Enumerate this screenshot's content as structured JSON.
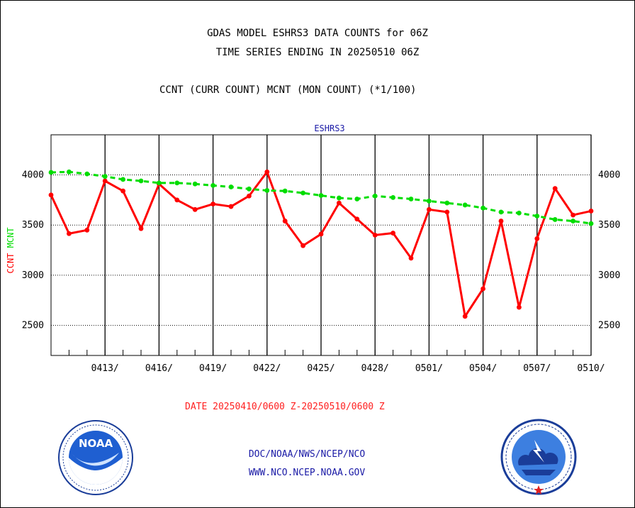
{
  "titles": {
    "line1": "GDAS MODEL ESHRS3 DATA COUNTS for 06Z",
    "line2": "TIME SERIES ENDING IN 20250510 06Z",
    "line3": "CCNT (CURR COUNT) MCNT (MON COUNT) (*1/100)"
  },
  "footer": {
    "date_range": "DATE 20250410/0600 Z-20250510/0600 Z",
    "org_path": "DOC/NOAA/NWS/NCEP/NCO",
    "website": "WWW.NCO.NCEP.NOAA.GOV"
  },
  "logos": {
    "left": {
      "icon": "noaa-logo-icon",
      "text": "NOAA"
    },
    "right": {
      "icon": "national-weather-service-logo-icon"
    }
  },
  "chart_data": {
    "type": "line",
    "title": "ESHRS3",
    "ylabel_left_parts": [
      {
        "text": "CCNT",
        "color": "#ff0000"
      },
      {
        "text": "MCNT",
        "color": "#00dd00"
      }
    ],
    "x": [
      0,
      1,
      2,
      3,
      4,
      5,
      6,
      7,
      8,
      9,
      10,
      11,
      12,
      13,
      14,
      15,
      16,
      17,
      18,
      19,
      20,
      21,
      22,
      23,
      24,
      25,
      26,
      27,
      28,
      29,
      30
    ],
    "xlim": [
      0,
      30
    ],
    "ylim": [
      2200,
      4400
    ],
    "yticks": [
      2500,
      3000,
      3500,
      4000
    ],
    "xticks": [
      {
        "x": 3,
        "label": "0413/"
      },
      {
        "x": 6,
        "label": "0416/"
      },
      {
        "x": 9,
        "label": "0419/"
      },
      {
        "x": 12,
        "label": "0422/"
      },
      {
        "x": 15,
        "label": "0425/"
      },
      {
        "x": 18,
        "label": "0428/"
      },
      {
        "x": 21,
        "label": "0501/"
      },
      {
        "x": 24,
        "label": "0504/"
      },
      {
        "x": 27,
        "label": "0507/"
      },
      {
        "x": 30,
        "label": "0510/"
      }
    ],
    "grid": true,
    "series": [
      {
        "name": "CCNT",
        "color": "#ff0000",
        "style": "solid",
        "values": [
          3800,
          3415,
          3450,
          3940,
          3840,
          3465,
          3910,
          3750,
          3655,
          3710,
          3685,
          3790,
          4030,
          3540,
          3295,
          3410,
          3720,
          3560,
          3400,
          3420,
          3170,
          3655,
          3630,
          2590,
          2865,
          3540,
          2680,
          3365,
          3865,
          3600,
          3640
        ]
      },
      {
        "name": "MCNT",
        "color": "#00dd00",
        "style": "dashed",
        "values": [
          4025,
          4030,
          4010,
          3985,
          3955,
          3940,
          3920,
          3920,
          3910,
          3895,
          3880,
          3860,
          3845,
          3840,
          3820,
          3795,
          3770,
          3760,
          3790,
          3775,
          3760,
          3740,
          3720,
          3700,
          3670,
          3630,
          3620,
          3590,
          3555,
          3540,
          3515
        ]
      }
    ]
  }
}
